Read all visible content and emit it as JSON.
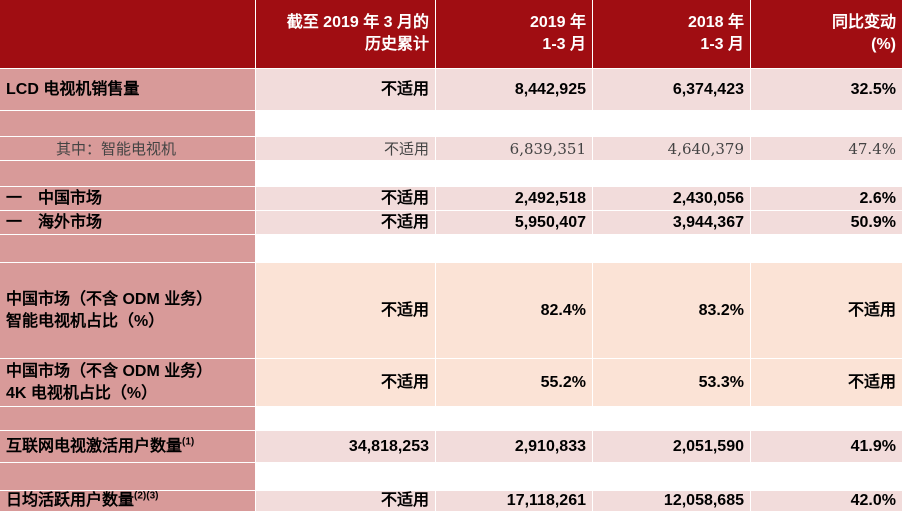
{
  "table": {
    "header": [
      [
        "截至 2019 年 3 月的",
        "历史累计"
      ],
      [
        "2019 年",
        "1-3 月"
      ],
      [
        "2018 年",
        "1-3 月"
      ],
      [
        "同比变动",
        "(%)"
      ]
    ],
    "rows": [
      {
        "label": [
          "LCD 电视机销售量"
        ],
        "cells": [
          "不适用",
          "8,442,925",
          "6,374,423",
          "32.5%"
        ]
      },
      {
        "label": [
          "其中：智能电视机"
        ],
        "cells": [
          "不适用",
          "6,839,351",
          "4,640,379",
          "47.4%"
        ]
      },
      {
        "label": [
          "一　中国市场"
        ],
        "cells": [
          "不适用",
          "2,492,518",
          "2,430,056",
          "2.6%"
        ]
      },
      {
        "label": [
          "一　海外市场"
        ],
        "cells": [
          "不适用",
          "5,950,407",
          "3,944,367",
          "50.9%"
        ]
      },
      {
        "label": [
          "中国市场（不含 ODM 业务）",
          "智能电视机占比（%）"
        ],
        "cells": [
          "不适用",
          "82.4%",
          "83.2%",
          "不适用"
        ]
      },
      {
        "label": [
          "中国市场（不含 ODM 业务）",
          "4K 电视机占比（%）"
        ],
        "cells": [
          "不适用",
          "55.2%",
          "53.3%",
          "不适用"
        ]
      },
      {
        "label": [
          "互联网电视激活用户数量"
        ],
        "note": "(1)",
        "cells": [
          "34,818,253",
          "2,910,833",
          "2,051,590",
          "41.9%"
        ]
      },
      {
        "label": [
          "日均活跃用户数量"
        ],
        "note": "(2)(3)",
        "cells": [
          "不适用",
          "17,118,261",
          "12,058,685",
          "42.0%"
        ]
      }
    ]
  }
}
